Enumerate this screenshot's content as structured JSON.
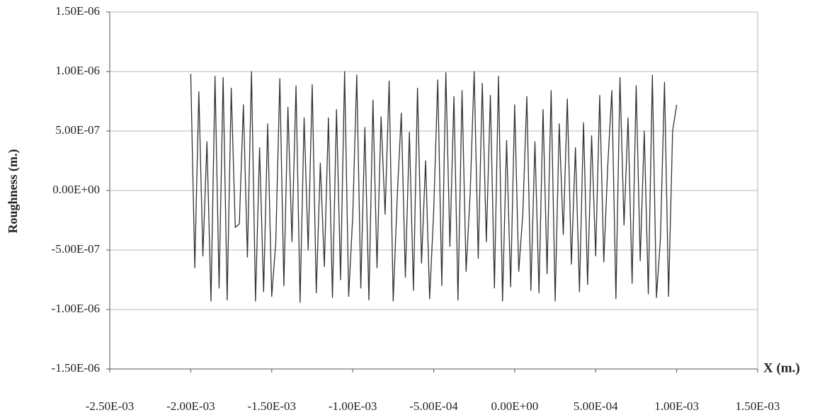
{
  "chart_data": {
    "type": "line",
    "y_label": "Roughness (m.)",
    "x_label": "X (m.)",
    "color": "#333333",
    "grid": true,
    "xlim": [
      -0.0025,
      0.0015
    ],
    "xticks": [
      {
        "value": -0.0025,
        "label": "-2.50E-03"
      },
      {
        "value": -0.002,
        "label": "-2.00E-03"
      },
      {
        "value": -0.0015,
        "label": "-1.50E-03"
      },
      {
        "value": -0.001,
        "label": "-1.00E-03"
      },
      {
        "value": -0.0005,
        "label": "-5.00E-04"
      },
      {
        "value": 0,
        "label": "0.00E+00"
      },
      {
        "value": 0.0005,
        "label": "5.00E-04"
      },
      {
        "value": 0.001,
        "label": "1.00E-03"
      },
      {
        "value": 0.0015,
        "label": "1.50E-03"
      }
    ],
    "ylim": [
      -1.5e-06,
      1.5e-06
    ],
    "yticks": [
      {
        "value": 1.5e-06,
        "label": "1.50E-06"
      },
      {
        "value": 1e-06,
        "label": "1.00E-06"
      },
      {
        "value": 5e-07,
        "label": "5.00E-07"
      },
      {
        "value": 0,
        "label": "0.00E+00"
      },
      {
        "value": -5e-07,
        "label": "-5.00E-07"
      },
      {
        "value": -1e-06,
        "label": "-1.00E-06"
      },
      {
        "value": -1.5e-06,
        "label": "-1.50E-06"
      }
    ],
    "x": [
      -0.002,
      -0.001975,
      -0.00195,
      -0.001925,
      -0.0019,
      -0.001875,
      -0.00185,
      -0.001825,
      -0.0018,
      -0.001775,
      -0.00175,
      -0.001725,
      -0.0017,
      -0.001675,
      -0.00165,
      -0.001625,
      -0.0016,
      -0.001575,
      -0.00155,
      -0.001525,
      -0.0015,
      -0.001475,
      -0.00145,
      -0.001425,
      -0.0014,
      -0.001375,
      -0.00135,
      -0.001325,
      -0.0013,
      -0.001275,
      -0.00125,
      -0.001225,
      -0.0012,
      -0.001175,
      -0.00115,
      -0.001125,
      -0.0011,
      -0.001075,
      -0.00105,
      -0.001025,
      -0.001,
      -0.000975,
      -0.00095,
      -0.000925,
      -0.0009,
      -0.000875,
      -0.00085,
      -0.000825,
      -0.0008,
      -0.000775,
      -0.00075,
      -0.000725,
      -0.0007,
      -0.000675,
      -0.00065,
      -0.000625,
      -0.0006,
      -0.000575,
      -0.00055,
      -0.000525,
      -0.0005,
      -0.000475,
      -0.00045,
      -0.000425,
      -0.0004,
      -0.000375,
      -0.00035,
      -0.000325,
      -0.0003,
      -0.000275,
      -0.00025,
      -0.000225,
      -0.0002,
      -0.000175,
      -0.00015,
      -0.000125,
      -0.0001,
      -7.5e-05,
      -5e-05,
      -2.5e-05,
      0,
      2.5e-05,
      5e-05,
      7.5e-05,
      0.0001,
      0.000125,
      0.00015,
      0.000175,
      0.0002,
      0.000225,
      0.00025,
      0.000275,
      0.0003,
      0.000325,
      0.00035,
      0.000375,
      0.0004,
      0.000425,
      0.00045,
      0.000475,
      0.0005,
      0.000525,
      0.00055,
      0.000575,
      0.0006,
      0.000625,
      0.00065,
      0.000675,
      0.0007,
      0.000725,
      0.00075,
      0.000775,
      0.0008,
      0.000825,
      0.00085,
      0.000875,
      0.0009,
      0.000925,
      0.00095,
      0.000975,
      0.001
    ],
    "values": [
      9.8e-07,
      -6.5e-07,
      8.3e-07,
      -5.5e-07,
      4.1e-07,
      -9.3e-07,
      9.6e-07,
      -8.2e-07,
      9.5e-07,
      -9.2e-07,
      8.6e-07,
      -3.1e-07,
      -2.8e-07,
      7.2e-07,
      -5.6e-07,
      1e-06,
      -9.3e-07,
      3.6e-07,
      -8.5e-07,
      5.6e-07,
      -8.9e-07,
      -4.4e-07,
      9.4e-07,
      -8e-07,
      7e-07,
      -4.3e-07,
      8.8e-07,
      -9.4e-07,
      6.1e-07,
      -5e-07,
      8.9e-07,
      -8.6e-07,
      2.3e-07,
      -6.4e-07,
      6.1e-07,
      -9e-07,
      6.8e-07,
      -7.5e-07,
      1e-06,
      -8.9e-07,
      -2.2e-07,
      9.7e-07,
      -8.2e-07,
      5.3e-07,
      -9.2e-07,
      7.6e-07,
      -6.5e-07,
      6.2e-07,
      -2e-07,
      9.2e-07,
      -9.3e-07,
      -5e-08,
      6.5e-07,
      -7.3e-07,
      4.9e-07,
      -8.4e-07,
      8.6e-07,
      -6.1e-07,
      2.5e-07,
      -9.1e-07,
      -1.7e-07,
      9.3e-07,
      -8e-07,
      9.9e-07,
      -4.7e-07,
      7.9e-07,
      -9.2e-07,
      8.4e-07,
      -6.8e-07,
      -3e-08,
      1e-06,
      -5.7e-07,
      9e-07,
      -4.3e-07,
      8e-07,
      -8.2e-07,
      9.6e-07,
      -9.3e-07,
      4.2e-07,
      -8.1e-07,
      7.2e-07,
      -6.8e-07,
      -2e-07,
      7.9e-07,
      -8.4e-07,
      4.1e-07,
      -8.6e-07,
      6.8e-07,
      -7e-07,
      8.4e-07,
      -9.3e-07,
      5.6e-07,
      -3.7e-07,
      7.7e-07,
      -6.2e-07,
      3.6e-07,
      -8.5e-07,
      5.7e-07,
      -7.9e-07,
      4.6e-07,
      -5.5e-07,
      8e-07,
      -6e-07,
      2.2e-07,
      8.4e-07,
      -9.1e-07,
      9.5e-07,
      -2.9e-07,
      6.1e-07,
      -7.8e-07,
      8.8e-07,
      -5.9e-07,
      5e-07,
      -8.7e-07,
      9.7e-07,
      -9e-07,
      -4e-07,
      9.1e-07,
      -8.9e-07,
      5e-07,
      7.2e-07
    ]
  }
}
